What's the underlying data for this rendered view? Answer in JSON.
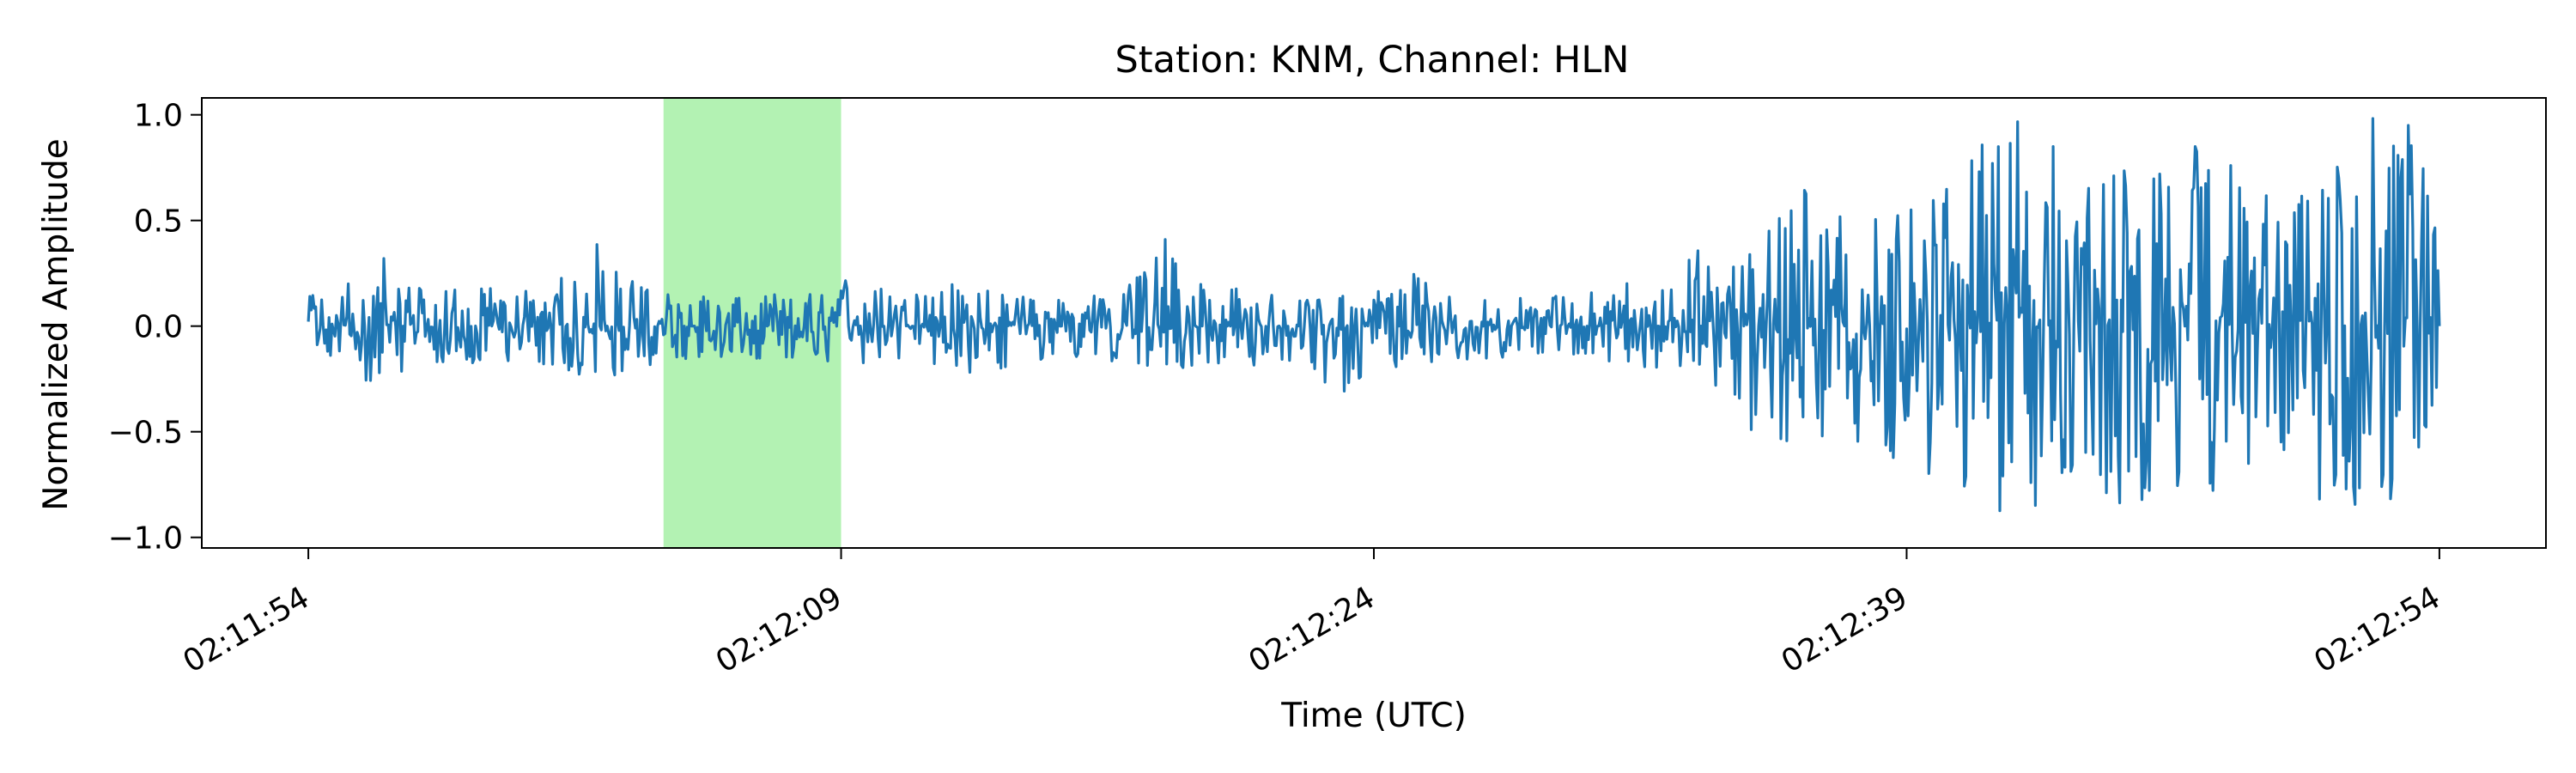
{
  "chart_data": {
    "type": "line",
    "title": "Station: KNM, Channel: HLN",
    "xlabel": "Time (UTC)",
    "ylabel": "Normalized Amplitude",
    "x_axis": {
      "type": "time",
      "start": "02:11:54",
      "end": "02:12:54",
      "range_padding_seconds": 3,
      "ticks": [
        "02:11:54",
        "02:12:09",
        "02:12:24",
        "02:12:39",
        "02:12:54"
      ],
      "tick_rotation": "30 degrees"
    },
    "y_axis": {
      "ylim": [
        -1.05,
        1.08
      ],
      "ticks": [
        1.0,
        0.5,
        0.0,
        -0.5,
        -1.0
      ],
      "tick_labels": [
        "1.0",
        "0.5",
        "0.0",
        "−0.5",
        "−1.0"
      ]
    },
    "highlight": {
      "start": "02:12:04",
      "end": "02:12:09",
      "color": "#b3f2b3"
    },
    "grid": false,
    "legend": "none",
    "series": [
      {
        "color": "#1f77b4",
        "x": [
          "02:11:54",
          "02:11:55",
          "02:11:56",
          "02:11:57",
          "02:11:58",
          "02:11:59",
          "02:12:00",
          "02:12:01",
          "02:12:02",
          "02:12:03",
          "02:12:04",
          "02:12:05",
          "02:12:06",
          "02:12:07",
          "02:12:08",
          "02:12:09",
          "02:12:10",
          "02:12:11",
          "02:12:12",
          "02:12:13",
          "02:12:14",
          "02:12:15",
          "02:12:16",
          "02:12:17",
          "02:12:18",
          "02:12:19",
          "02:12:20",
          "02:12:21",
          "02:12:22",
          "02:12:23",
          "02:12:24",
          "02:12:25",
          "02:12:26",
          "02:12:27",
          "02:12:28",
          "02:12:29",
          "02:12:30",
          "02:12:31",
          "02:12:32",
          "02:12:33",
          "02:12:34",
          "02:12:35",
          "02:12:36",
          "02:12:37",
          "02:12:38",
          "02:12:39",
          "02:12:40",
          "02:12:41",
          "02:12:42",
          "02:12:43",
          "02:12:44",
          "02:12:45",
          "02:12:46",
          "02:12:47",
          "02:12:48",
          "02:12:49",
          "02:12:50",
          "02:12:51",
          "02:12:52",
          "02:12:53",
          "02:12:54"
        ],
        "max": [
          0.14,
          0.18,
          0.34,
          0.18,
          0.17,
          0.18,
          0.16,
          0.2,
          0.41,
          0.22,
          0.15,
          0.14,
          0.13,
          0.15,
          0.14,
          0.22,
          0.18,
          0.14,
          0.2,
          0.17,
          0.14,
          0.12,
          0.14,
          0.16,
          0.44,
          0.2,
          0.18,
          0.15,
          0.12,
          0.14,
          0.15,
          0.26,
          0.14,
          0.12,
          0.13,
          0.14,
          0.15,
          0.21,
          0.14,
          0.37,
          0.26,
          0.42,
          0.66,
          0.52,
          0.5,
          0.54,
          0.62,
          0.84,
          0.98,
          0.88,
          0.64,
          0.74,
          0.7,
          0.86,
          0.78,
          0.62,
          0.6,
          0.72,
          0.98,
          1.0,
          0.6
        ],
        "min": [
          -0.12,
          -0.15,
          -0.32,
          -0.15,
          -0.18,
          -0.17,
          -0.16,
          -0.19,
          -0.25,
          -0.22,
          -0.16,
          -0.15,
          -0.14,
          -0.16,
          -0.14,
          -0.18,
          -0.17,
          -0.14,
          -0.2,
          -0.23,
          -0.17,
          -0.15,
          -0.14,
          -0.18,
          -0.19,
          -0.2,
          -0.16,
          -0.2,
          -0.14,
          -0.34,
          -0.18,
          -0.2,
          -0.15,
          -0.16,
          -0.14,
          -0.12,
          -0.14,
          -0.18,
          -0.2,
          -0.18,
          -0.34,
          -0.58,
          -0.52,
          -0.52,
          -0.56,
          -0.66,
          -0.72,
          -0.78,
          -0.93,
          -0.8,
          -0.62,
          -0.89,
          -0.78,
          -0.74,
          -0.8,
          -0.56,
          -0.6,
          -0.95,
          -0.78,
          -0.84,
          -0.26
        ]
      }
    ]
  }
}
